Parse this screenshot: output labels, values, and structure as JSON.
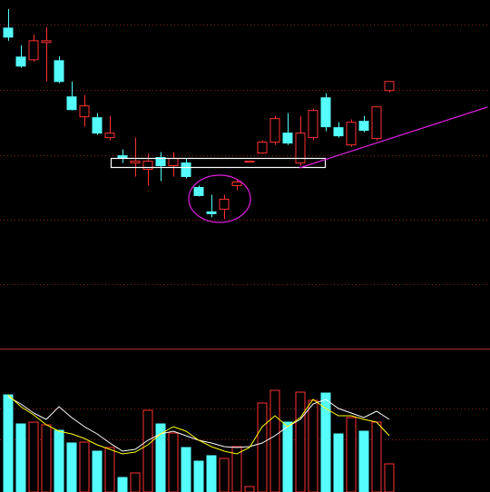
{
  "chart_data": [
    {
      "type": "candlestick",
      "categories": [
        null,
        null,
        null,
        null,
        null,
        null,
        null,
        null,
        null,
        null,
        null,
        null,
        null,
        null,
        null,
        null,
        null,
        null,
        null,
        null,
        null,
        null,
        null,
        null,
        null,
        null,
        null,
        null,
        null,
        null,
        null
      ],
      "open": [
        354,
        322,
        319,
        338,
        318,
        278,
        256,
        255,
        233,
        213,
        205,
        198,
        211,
        202,
        205,
        178,
        151,
        154,
        180,
        206,
        216,
        228,
        238,
        205,
        233,
        277,
        244,
        225,
        251,
        232,
        285
      ],
      "close": [
        344,
        312,
        340,
        340,
        295,
        264,
        268,
        238,
        238,
        211,
        207,
        207,
        202,
        210,
        190,
        169,
        149,
        165,
        184,
        207,
        228,
        254,
        227,
        238,
        263,
        245,
        235,
        250,
        241,
        267,
        295
      ],
      "high": [
        375,
        335,
        347,
        355,
        323,
        295,
        280,
        260,
        257,
        220,
        233,
        215,
        217,
        217,
        210,
        180,
        170,
        170,
        187,
        207,
        230,
        257,
        260,
        257,
        265,
        282,
        250,
        253,
        257,
        267,
        295
      ],
      "low": [
        340,
        310,
        317,
        295,
        293,
        263,
        245,
        236,
        230,
        205,
        190,
        180,
        185,
        190,
        188,
        168,
        145,
        143,
        175,
        206,
        215,
        225,
        225,
        202,
        230,
        240,
        233,
        223,
        239,
        230,
        283
      ],
      "up_color": "#ff3232",
      "down_color": "#54fcfc",
      "ylim": [
        0,
        385
      ],
      "gridlines": [
        358,
        286,
        214,
        142,
        71
      ]
    },
    {
      "type": "volume",
      "categories": [
        null,
        null,
        null,
        null,
        null,
        null,
        null,
        null,
        null,
        null,
        null,
        null,
        null,
        null,
        null,
        null,
        null,
        null,
        null,
        null,
        null,
        null,
        null,
        null,
        null,
        null,
        null,
        null,
        null,
        null,
        null
      ],
      "values": [
        107,
        75,
        77,
        74,
        68,
        54,
        55,
        45,
        49,
        16,
        21,
        90,
        75,
        65,
        49,
        34,
        40,
        37,
        50,
        6,
        98,
        112,
        77,
        110,
        101,
        109,
        64,
        82,
        67,
        77,
        31
      ],
      "series": [
        {
          "color": "#ffffff",
          "values": [
            105,
            97,
            87,
            80,
            94,
            82,
            72,
            64,
            54,
            45,
            47,
            57,
            64,
            67,
            62,
            57,
            54,
            50,
            49,
            50,
            54,
            62,
            72,
            80,
            97,
            102,
            92,
            87,
            82,
            89,
            80
          ]
        },
        {
          "color": "#ffff00",
          "values": [
            107,
            94,
            85,
            74,
            67,
            64,
            59,
            52,
            47,
            42,
            44,
            52,
            64,
            72,
            67,
            57,
            50,
            45,
            42,
            49,
            72,
            84,
            72,
            82,
            102,
            92,
            84,
            84,
            80,
            77,
            62
          ]
        }
      ],
      "ylim": [
        0,
        157
      ],
      "gridlines": [
        92,
        58
      ]
    }
  ]
}
